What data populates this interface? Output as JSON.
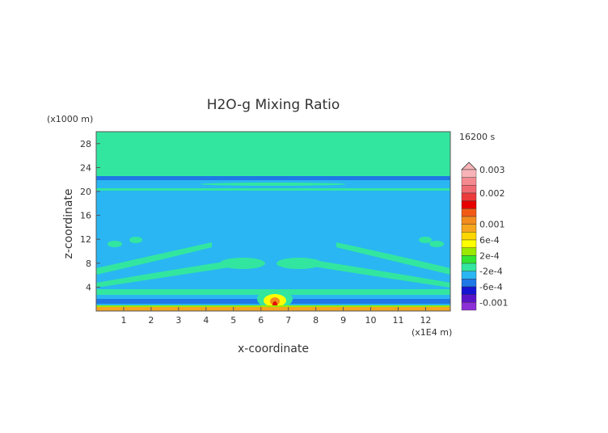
{
  "chart_data": {
    "type": "heatmap",
    "title": "H2O-g Mixing Ratio",
    "xlabel": "x-coordinate",
    "ylabel": "z-coordinate",
    "x_unit": "(x1E4 m)",
    "y_unit": "(x1000 m)",
    "time_label": "16200 s",
    "xlim": [
      0,
      12.9
    ],
    "ylim": [
      0,
      30
    ],
    "x_ticks": [
      "1",
      "2",
      "3",
      "4",
      "5",
      "6",
      "7",
      "8",
      "9",
      "10",
      "11",
      "12"
    ],
    "y_ticks": [
      "4",
      "8",
      "12",
      "16",
      "20",
      "24",
      "28"
    ],
    "colorbar": {
      "levels": [
        {
          "label": "0.003",
          "color": "#f7b3b7"
        },
        {
          "label": "",
          "color": "#f48a90"
        },
        {
          "label": "",
          "color": "#f06a72"
        },
        {
          "label": "0.002",
          "color": "#ec3b3b"
        },
        {
          "label": "",
          "color": "#e60000"
        },
        {
          "label": "",
          "color": "#f25a14"
        },
        {
          "label": "",
          "color": "#f28c1e"
        },
        {
          "label": "0.001",
          "color": "#f6a51e"
        },
        {
          "label": "",
          "color": "#ffd700"
        },
        {
          "label": "6e-4",
          "color": "#ffff00"
        },
        {
          "label": "",
          "color": "#9be800"
        },
        {
          "label": "2e-4",
          "color": "#33e633"
        },
        {
          "label": "",
          "color": "#33e6a0"
        },
        {
          "label": "-2e-4",
          "color": "#2ab6f2"
        },
        {
          "label": "",
          "color": "#1e78e6"
        },
        {
          "label": "-6e-4",
          "color": "#1414d2"
        },
        {
          "label": "",
          "color": "#5a14c8"
        },
        {
          "label": "-0.001",
          "color": "#8c2fd6"
        }
      ]
    }
  }
}
